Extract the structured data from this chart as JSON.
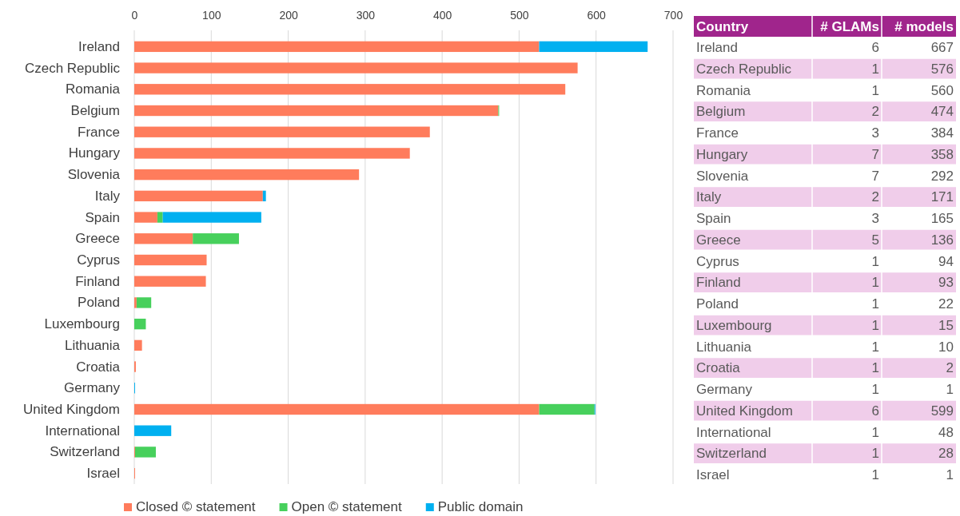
{
  "chart_data": [
    {
      "type": "bar",
      "orientation": "horizontal",
      "stacked": true,
      "categories": [
        "Ireland",
        "Czech Republic",
        "Romania",
        "Belgium",
        "France",
        "Hungary",
        "Slovenia",
        "Italy",
        "Spain",
        "Greece",
        "Cyprus",
        "Finland",
        "Poland",
        "Luxembourg",
        "Lithuania",
        "Croatia",
        "Germany",
        "United Kingdom",
        "International",
        "Switzerland",
        "Israel"
      ],
      "series": [
        {
          "name": "Closed © statement",
          "color": "#ff7c5c",
          "values": [
            526,
            576,
            560,
            473,
            384,
            358,
            292,
            167,
            30,
            76,
            94,
            93,
            3,
            0,
            10,
            2,
            0,
            526,
            0,
            1,
            1
          ]
        },
        {
          "name": "Open © statement",
          "color": "#47d05c",
          "values": [
            0,
            0,
            0,
            1,
            0,
            0,
            0,
            0,
            7,
            60,
            0,
            0,
            19,
            15,
            0,
            0,
            0,
            72,
            0,
            27,
            0
          ]
        },
        {
          "name": "Public domain",
          "color": "#00b0f0",
          "values": [
            141,
            0,
            0,
            0,
            0,
            0,
            0,
            4,
            128,
            0,
            0,
            0,
            0,
            0,
            0,
            0,
            1,
            1,
            48,
            0,
            0
          ]
        }
      ],
      "xlim": [
        0,
        700
      ],
      "xticks": [
        0,
        100,
        200,
        300,
        400,
        500,
        600,
        700
      ],
      "grid": "x",
      "legend": "bottom"
    },
    {
      "type": "other",
      "xlabel": "Country",
      "data_labels": true,
      "categories": [
        "Ireland",
        "Czech Republic",
        "Romania",
        "Belgium",
        "France",
        "Hungary",
        "Slovenia",
        "Italy",
        "Spain",
        "Greece",
        "Cyprus",
        "Finland",
        "Poland",
        "Luxembourg",
        "Lithuania",
        "Croatia",
        "Germany",
        "United Kingdom",
        "International",
        "Switzerland",
        "Israel"
      ],
      "series": [
        {
          "name": "# GLAMs",
          "values": [
            6,
            1,
            1,
            2,
            3,
            7,
            7,
            2,
            3,
            5,
            1,
            1,
            1,
            1,
            1,
            1,
            1,
            6,
            1,
            1,
            1
          ]
        },
        {
          "name": "# models",
          "values": [
            667,
            576,
            560,
            474,
            384,
            358,
            292,
            171,
            165,
            136,
            94,
            93,
            22,
            15,
            10,
            2,
            1,
            599,
            48,
            28,
            1
          ]
        }
      ]
    }
  ]
}
